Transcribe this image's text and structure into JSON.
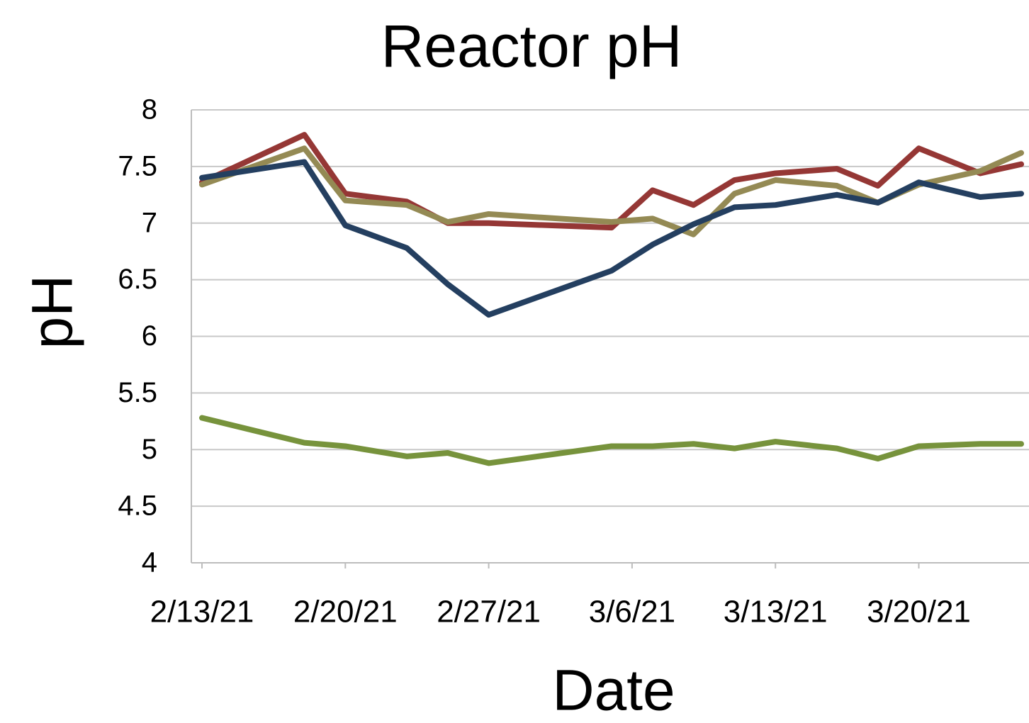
{
  "chart_data": {
    "type": "line",
    "title": "Reactor pH",
    "x_label": "Date",
    "y_label": "pH",
    "x": [
      "2/13/21",
      "2/18/21",
      "2/20/21",
      "2/23/21",
      "2/25/21",
      "2/27/21",
      "3/5/21",
      "3/7/21",
      "3/9/21",
      "3/11/21",
      "3/13/21",
      "3/16/21",
      "3/18/21",
      "3/20/21",
      "3/23/21",
      "3/25/21"
    ],
    "series": [
      {
        "color": "#953735",
        "values": [
          7.36,
          7.78,
          7.26,
          7.19,
          7.0,
          7.0,
          6.96,
          7.29,
          7.16,
          7.38,
          7.44,
          7.48,
          7.33,
          7.66,
          7.44,
          7.52
        ]
      },
      {
        "color": "#948a54",
        "values": [
          7.34,
          7.66,
          7.2,
          7.16,
          7.01,
          7.08,
          7.01,
          7.04,
          6.9,
          7.26,
          7.38,
          7.33,
          7.18,
          7.34,
          7.46,
          7.62
        ]
      },
      {
        "color": "#243f60",
        "values": [
          7.4,
          7.54,
          6.98,
          6.78,
          6.46,
          6.19,
          6.58,
          6.81,
          6.99,
          7.14,
          7.16,
          7.25,
          7.18,
          7.36,
          7.23,
          7.26
        ]
      },
      {
        "color": "#77933c",
        "values": [
          5.28,
          5.06,
          5.03,
          4.94,
          4.97,
          4.88,
          5.03,
          5.03,
          5.05,
          5.01,
          5.07,
          5.01,
          4.92,
          5.03,
          5.05,
          5.05
        ]
      }
    ],
    "xlim": [
      "2/13/21",
      "3/25/21"
    ],
    "xticks": [
      "2/13/21",
      "2/20/21",
      "2/27/21",
      "3/6/21",
      "3/13/21",
      "3/20/21"
    ],
    "ylim": [
      4,
      8
    ],
    "yticks": [
      4,
      4.5,
      5,
      5.5,
      6,
      6.5,
      7,
      7.5,
      8
    ],
    "grid": true
  }
}
